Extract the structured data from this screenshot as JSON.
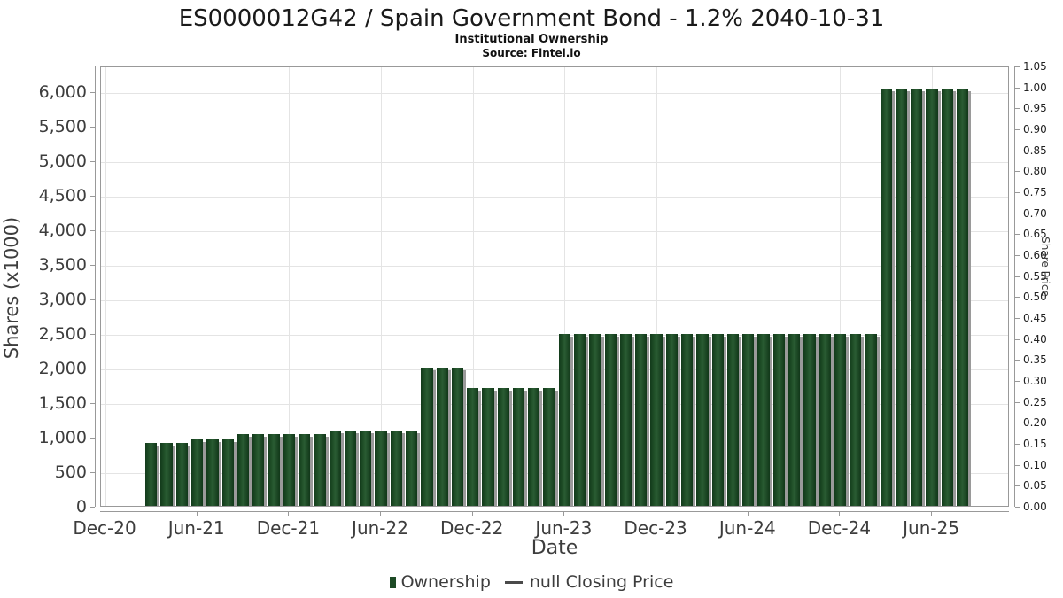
{
  "header": {
    "title": "ES0000012G42 / Spain Government Bond - 1.2% 2040-10-31",
    "subtitle": "Institutional Ownership",
    "source": "Source: Fintel.io"
  },
  "chart_data": {
    "type": "bar",
    "title": "ES0000012G42 / Spain Government Bond - 1.2% 2040-10-31",
    "subtitle": "Institutional Ownership",
    "source": "Source: Fintel.io",
    "xlabel": "Date",
    "ylabel_left": "Shares (x1000)",
    "ylabel_right": "Share Price",
    "grid": true,
    "legend_position": "bottom-center",
    "left_axis": {
      "min": 0,
      "max": 6000,
      "tick_step": 500
    },
    "right_axis": {
      "min": 0.0,
      "max": 1.05,
      "tick_step": 0.05
    },
    "x_tick_labels": [
      "Dec-20",
      "Jun-21",
      "Dec-21",
      "Jun-22",
      "Dec-22",
      "Jun-23",
      "Dec-23",
      "Jun-24",
      "Dec-24",
      "Jun-25"
    ],
    "colors": {
      "bar": "#1d4a25",
      "bar_shadow": "#9a9a9a",
      "closing_price_line": "#4a4a4a"
    },
    "legend_items": [
      {
        "label": "Ownership",
        "marker": "bar",
        "color": "#1d4a25"
      },
      {
        "label": "null Closing Price",
        "marker": "line",
        "color": "#4a4a4a"
      }
    ],
    "x": [
      "Mar-21",
      "Apr-21",
      "May-21",
      "Jun-21",
      "Jul-21",
      "Aug-21",
      "Sep-21",
      "Oct-21",
      "Nov-21",
      "Dec-21",
      "Jan-22",
      "Feb-22",
      "Mar-22",
      "Apr-22",
      "May-22",
      "Jun-22",
      "Jul-22",
      "Aug-22",
      "Sep-22",
      "Oct-22",
      "Nov-22",
      "Dec-22",
      "Jan-23",
      "Feb-23",
      "Mar-23",
      "Apr-23",
      "May-23",
      "Jun-23",
      "Jul-23",
      "Aug-23",
      "Sep-23",
      "Oct-23",
      "Nov-23",
      "Dec-23",
      "Jan-24",
      "Feb-24",
      "Mar-24",
      "Apr-24",
      "May-24",
      "Jun-24",
      "Jul-24",
      "Aug-24",
      "Sep-24",
      "Oct-24",
      "Nov-24",
      "Dec-24",
      "Jan-25",
      "Feb-25",
      "Mar-25",
      "Apr-25",
      "May-25",
      "Jun-25",
      "Jul-25",
      "Aug-25"
    ],
    "series": [
      {
        "name": "Ownership",
        "units": "shares x1000",
        "values": [
          940,
          940,
          940,
          990,
          990,
          990,
          1060,
          1060,
          1060,
          1060,
          1060,
          1060,
          1120,
          1120,
          1120,
          1120,
          1120,
          1120,
          2030,
          2030,
          2030,
          1730,
          1730,
          1730,
          1730,
          1730,
          1730,
          2510,
          2510,
          2510,
          2510,
          2510,
          2510,
          2510,
          2510,
          2510,
          2510,
          2510,
          2510,
          2510,
          2510,
          2510,
          2510,
          2510,
          2510,
          2510,
          2510,
          2510,
          6060,
          6060,
          6060,
          6060,
          6060,
          6060
        ]
      }
    ]
  }
}
